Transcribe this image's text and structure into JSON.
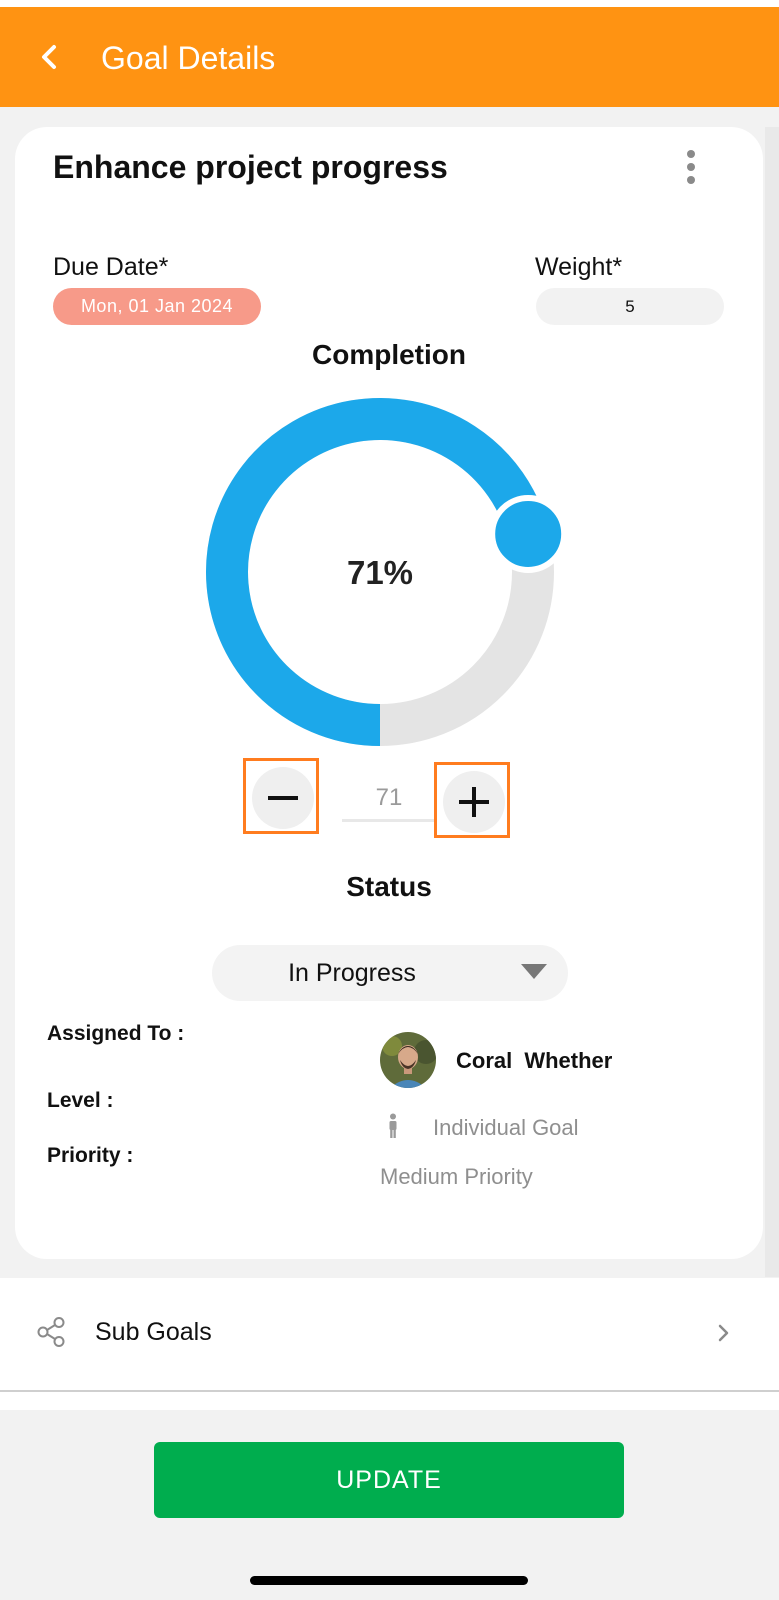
{
  "header": {
    "title": "Goal Details"
  },
  "goal": {
    "title": "Enhance project progress",
    "due_date_label": "Due Date*",
    "due_date_value": "Mon, 01 Jan 2024",
    "weight_label": "Weight*",
    "weight_value": "5"
  },
  "completion": {
    "title": "Completion",
    "percent_text": "71%",
    "value": 71,
    "stepper_value": "71"
  },
  "status": {
    "title": "Status",
    "selected": "In Progress"
  },
  "details": {
    "assigned_label": "Assigned To :",
    "assignee_name": "Coral  Whether",
    "level_label": "Level :",
    "level_value": "Individual Goal",
    "priority_label": "Priority :",
    "priority_value": "Medium Priority"
  },
  "subgoals": {
    "label": "Sub Goals"
  },
  "footer": {
    "update_label": "UPDATE"
  },
  "colors": {
    "header": "#ff9312",
    "progress": "#1ca8ea",
    "track": "#e4e4e4",
    "due_pill": "#f79a89",
    "update_button": "#00ad4e",
    "highlight_border": "#ff7c1f"
  },
  "icons": {
    "back": "chevron-left-icon",
    "menu": "more-vertical-icon",
    "minus": "minus-icon",
    "plus": "plus-icon",
    "dropdown": "triangle-down-icon",
    "level": "person-icon",
    "subgoals": "share-icon",
    "chevron": "chevron-right-icon"
  }
}
